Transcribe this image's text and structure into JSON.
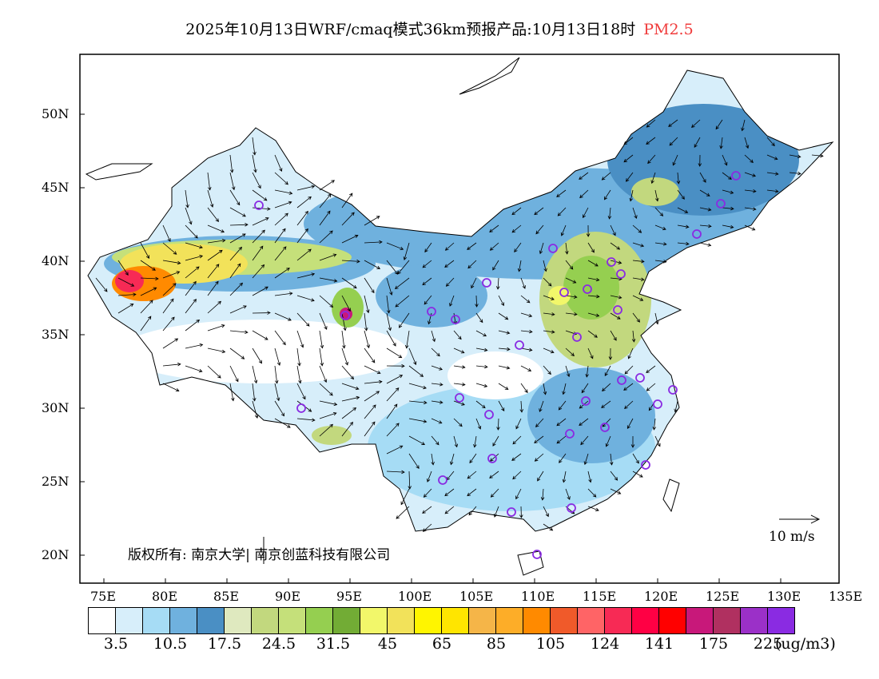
{
  "title": {
    "main": "2025年10月13日WRF/cmaq模式36km预报产品:10月13日18时",
    "species": "PM2.5"
  },
  "axes": {
    "lon_labels": [
      "75E",
      "80E",
      "85E",
      "90E",
      "95E",
      "100E",
      "105E",
      "110E",
      "115E",
      "120E",
      "125E",
      "130E",
      "135E"
    ],
    "lat_labels": [
      "50N",
      "45N",
      "40N",
      "35N",
      "30N",
      "25N",
      "20N"
    ]
  },
  "colorbar": {
    "colors": [
      "#ffffff",
      "#d7eefa",
      "#a6dcf5",
      "#6fb1de",
      "#4a8fc4",
      "#dfe9bf",
      "#c2d87e",
      "#c5e07a",
      "#95cf50",
      "#72ac35",
      "#f2f76a",
      "#f2e25a",
      "#fff500",
      "#ffe500",
      "#f5b548",
      "#fdad28",
      "#ff8a00",
      "#f05a2a",
      "#ff6466",
      "#f72a55",
      "#ff0044",
      "#ff0000",
      "#c8187a",
      "#b03060",
      "#9b30c8",
      "#8a2be2"
    ],
    "labels": [
      "3.5",
      "10.5",
      "17.5",
      "24.5",
      "31.5",
      "45",
      "65",
      "85",
      "105",
      "124",
      "141",
      "175",
      "225"
    ],
    "unit": "(ug/m3)"
  },
  "wind_reference": "10 m/s",
  "copyright": "版权所有: 南京大学| 南京创蓝科技有限公司"
}
